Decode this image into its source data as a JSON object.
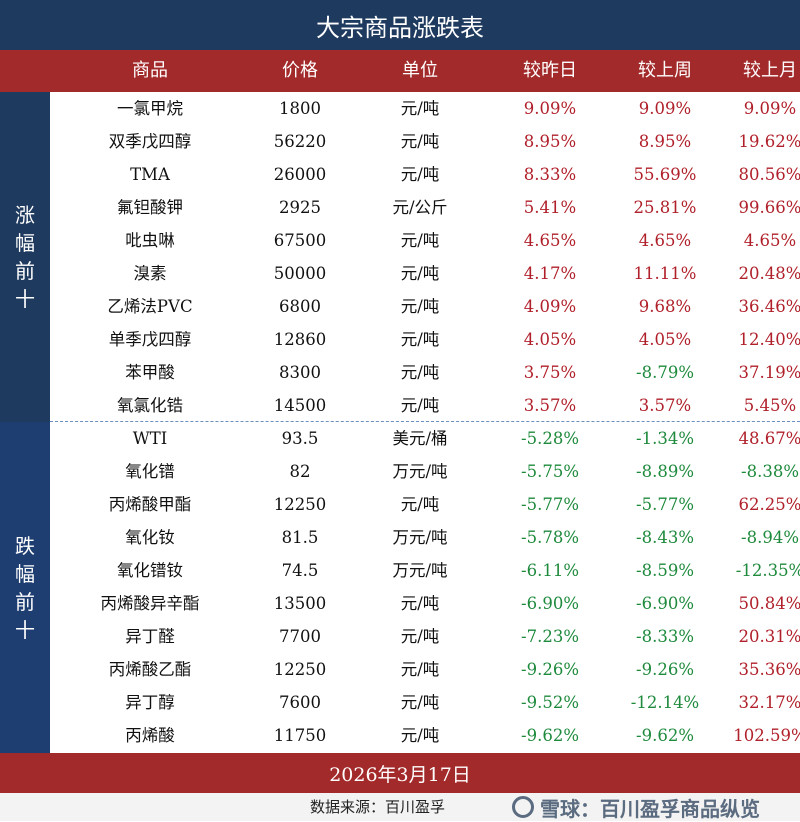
{
  "title": "大宗商品涨跌表",
  "headers": [
    "商品",
    "价格",
    "单位",
    "较昨日",
    "较上周",
    "较上月"
  ],
  "side_labels": {
    "up": [
      "涨",
      "幅",
      "前",
      "十"
    ],
    "down": [
      "跌",
      "幅",
      "前",
      "十"
    ]
  },
  "rows": [
    [
      "一氯甲烷",
      "1800",
      "元/吨",
      "9.09%",
      "9.09%",
      "9.09%"
    ],
    [
      "双季戊四醇",
      "56220",
      "元/吨",
      "8.95%",
      "8.95%",
      "19.62%"
    ],
    [
      "TMA",
      "26000",
      "元/吨",
      "8.33%",
      "55.69%",
      "80.56%"
    ],
    [
      "氟钽酸钾",
      "2925",
      "元/公斤",
      "5.41%",
      "25.81%",
      "99.66%"
    ],
    [
      "吡虫啉",
      "67500",
      "元/吨",
      "4.65%",
      "4.65%",
      "4.65%"
    ],
    [
      "溴素",
      "50000",
      "元/吨",
      "4.17%",
      "11.11%",
      "20.48%"
    ],
    [
      "乙烯法PVC",
      "6800",
      "元/吨",
      "4.09%",
      "9.68%",
      "36.46%"
    ],
    [
      "单季戊四醇",
      "12860",
      "元/吨",
      "4.05%",
      "4.05%",
      "12.40%"
    ],
    [
      "苯甲酸",
      "8300",
      "元/吨",
      "3.75%",
      "-8.79%",
      "37.19%"
    ],
    [
      "氧氯化锆",
      "14500",
      "元/吨",
      "3.57%",
      "3.57%",
      "5.45%"
    ],
    [
      "WTI",
      "93.5",
      "美元/桶",
      "-5.28%",
      "-1.34%",
      "48.67%"
    ],
    [
      "氧化镨",
      "82",
      "万元/吨",
      "-5.75%",
      "-8.89%",
      "-8.38%"
    ],
    [
      "丙烯酸甲酯",
      "12250",
      "元/吨",
      "-5.77%",
      "-5.77%",
      "62.25%"
    ],
    [
      "氧化钕",
      "81.5",
      "万元/吨",
      "-5.78%",
      "-8.43%",
      "-8.94%"
    ],
    [
      "氧化镨钕",
      "74.5",
      "万元/吨",
      "-6.11%",
      "-8.59%",
      "-12.35%"
    ],
    [
      "丙烯酸异辛酯",
      "13500",
      "元/吨",
      "-6.90%",
      "-6.90%",
      "50.84%"
    ],
    [
      "异丁醛",
      "7700",
      "元/吨",
      "-7.23%",
      "-8.33%",
      "20.31%"
    ],
    [
      "丙烯酸乙酯",
      "12250",
      "元/吨",
      "-9.26%",
      "-9.26%",
      "35.36%"
    ],
    [
      "异丁醇",
      "7600",
      "元/吨",
      "-9.52%",
      "-12.14%",
      "32.17%"
    ],
    [
      "丙烯酸",
      "11750",
      "元/吨",
      "-9.62%",
      "-9.62%",
      "102.59%"
    ]
  ],
  "date": "2026年3月17日",
  "source": "数据来源：百川盈孚",
  "logo_text": "雪球：百川盈孚商品纵览",
  "colors": {
    "navy": "#1f3a5f",
    "red_bar": "#a32a2a",
    "up": "#b0202a",
    "down": "#1e8a3c"
  }
}
